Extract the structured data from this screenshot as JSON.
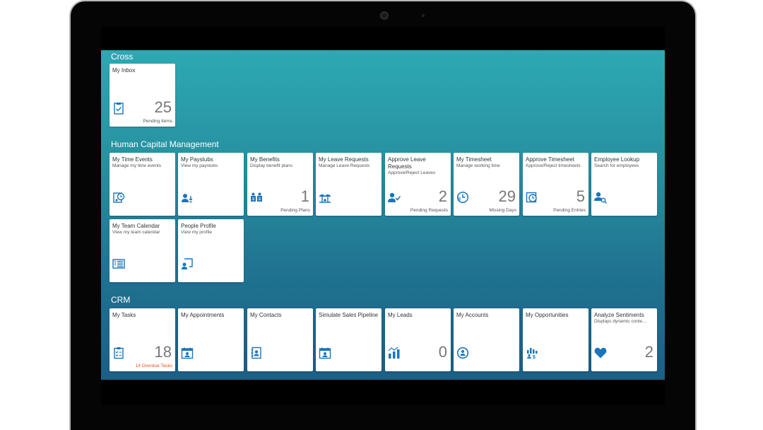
{
  "groups": {
    "cross": {
      "title": "Cross",
      "tiles": [
        {
          "title": "My Inbox",
          "subtitle": "",
          "number": "25",
          "footer": "Pending Items",
          "icon": "inbox-icon"
        }
      ]
    },
    "hcm": {
      "title": "Human Capital Management",
      "tiles": [
        {
          "title": "My Time Events",
          "subtitle": "Manage my time events",
          "number": "",
          "footer": "",
          "icon": "time-events-icon"
        },
        {
          "title": "My Paystubs",
          "subtitle": "View my paystubs",
          "number": "",
          "footer": "",
          "icon": "paystub-icon"
        },
        {
          "title": "My Benefits",
          "subtitle": "Display benefit plans",
          "number": "1",
          "footer": "Pending Plans",
          "icon": "benefits-icon"
        },
        {
          "title": "My Leave Requests",
          "subtitle": "Manage Leave Requests",
          "number": "",
          "footer": "",
          "icon": "leave-icon"
        },
        {
          "title": "Approve Leave Requests",
          "subtitle": "Approve/Reject Leaves",
          "number": "2",
          "footer": "Pending Requests",
          "icon": "approve-icon"
        },
        {
          "title": "My Timesheet",
          "subtitle": "Manage working time",
          "number": "29",
          "footer": "Missing Days",
          "icon": "timesheet-icon"
        },
        {
          "title": "Approve Timesheet",
          "subtitle": "Approve/Reject timesheets",
          "number": "5",
          "footer": "Pending Entries",
          "icon": "approve-timesheet-icon"
        },
        {
          "title": "Employee Lookup",
          "subtitle": "Search for employees",
          "number": "",
          "footer": "",
          "icon": "employee-lookup-icon"
        },
        {
          "title": "My Team Calendar",
          "subtitle": "View my team calendar",
          "number": "",
          "footer": "",
          "icon": "calendar-icon"
        },
        {
          "title": "People Profile",
          "subtitle": "View my profile",
          "number": "",
          "footer": "",
          "icon": "profile-icon"
        }
      ]
    },
    "crm": {
      "title": "CRM",
      "tiles": [
        {
          "title": "My Tasks",
          "subtitle": "",
          "number": "18",
          "footer": "14 Overdue Tasks",
          "icon": "tasks-icon"
        },
        {
          "title": "My Appointments",
          "subtitle": "",
          "number": "",
          "footer": "",
          "icon": "appointments-icon"
        },
        {
          "title": "My Contacts",
          "subtitle": "",
          "number": "",
          "footer": "",
          "icon": "contacts-icon"
        },
        {
          "title": "Simulate Sales Pipeline",
          "subtitle": "",
          "number": "",
          "footer": "",
          "icon": "pipeline-icon"
        },
        {
          "title": "My Leads",
          "subtitle": "",
          "number": "0",
          "footer": "",
          "icon": "leads-icon"
        },
        {
          "title": "My Accounts",
          "subtitle": "",
          "number": "",
          "footer": "",
          "icon": "accounts-icon"
        },
        {
          "title": "My Opportunities",
          "subtitle": "",
          "number": "",
          "footer": "",
          "icon": "opportunities-icon"
        },
        {
          "title": "Analyze Sentiments",
          "subtitle": "Displays dynamic conte…",
          "number": "2",
          "footer": "",
          "icon": "heart-icon"
        }
      ]
    }
  },
  "colors": {
    "icon": "#1a75bb",
    "alert": "#e5501e",
    "tile_bg": "#ffffff"
  }
}
